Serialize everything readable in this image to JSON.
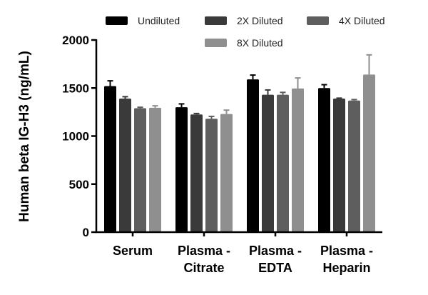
{
  "chart_data": {
    "type": "bar",
    "title": "",
    "xlabel": "",
    "ylabel": "Human beta IG-H3 (ng/mL)",
    "ylim": [
      0,
      2000
    ],
    "yticks": [
      "0",
      "500",
      "1000",
      "1500",
      "2000"
    ],
    "grid": false,
    "legend_position": "top",
    "categories": [
      [
        "Serum"
      ],
      [
        "Plasma -",
        "Citrate"
      ],
      [
        "Plasma -",
        "EDTA"
      ],
      [
        "Plasma -",
        "Heparin"
      ]
    ],
    "series": [
      {
        "name": "Undiluted",
        "color": "#000000",
        "values": [
          1520,
          1300,
          1590,
          1500
        ],
        "errors": [
          55,
          35,
          45,
          35
        ]
      },
      {
        "name": "2X Diluted",
        "color": "#3a3a3a",
        "values": [
          1390,
          1225,
          1430,
          1390
        ],
        "errors": [
          20,
          10,
          50,
          5
        ]
      },
      {
        "name": "4X Diluted",
        "color": "#5e5e5e",
        "values": [
          1290,
          1180,
          1430,
          1370
        ],
        "errors": [
          10,
          25,
          25,
          10
        ]
      },
      {
        "name": "8X Diluted",
        "color": "#8f8f8f",
        "values": [
          1295,
          1230,
          1495,
          1640
        ],
        "errors": [
          20,
          40,
          110,
          205
        ]
      }
    ]
  }
}
